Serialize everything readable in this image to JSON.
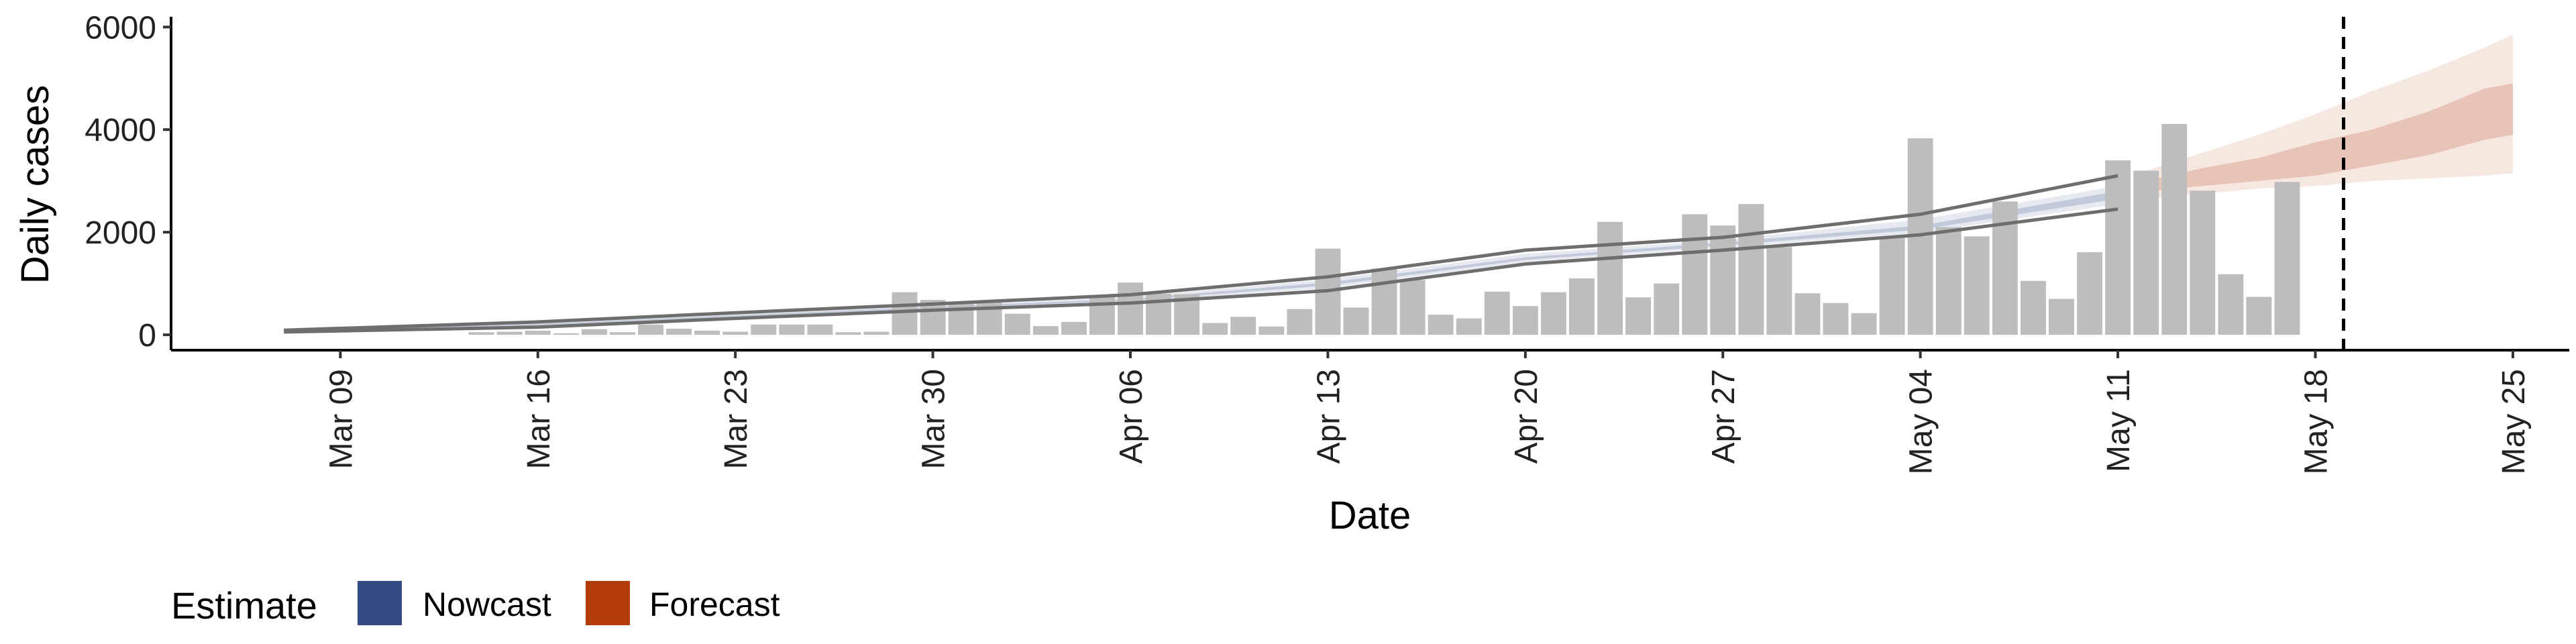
{
  "chart_data": {
    "type": "bar",
    "xlabel": "Date",
    "ylabel": "Daily cases",
    "ylim": [
      -300,
      6200
    ],
    "xlim": [
      "2020-03-03",
      "2020-05-27"
    ],
    "x_ticks": [
      {
        "date": "2020-03-09",
        "label": "Mar 09"
      },
      {
        "date": "2020-03-16",
        "label": "Mar 16"
      },
      {
        "date": "2020-03-23",
        "label": "Mar 23"
      },
      {
        "date": "2020-03-30",
        "label": "Mar 30"
      },
      {
        "date": "2020-04-06",
        "label": "Apr 06"
      },
      {
        "date": "2020-04-13",
        "label": "Apr 13"
      },
      {
        "date": "2020-04-20",
        "label": "Apr 20"
      },
      {
        "date": "2020-04-27",
        "label": "Apr 27"
      },
      {
        "date": "2020-05-04",
        "label": "May 04"
      },
      {
        "date": "2020-05-11",
        "label": "May 11"
      },
      {
        "date": "2020-05-18",
        "label": "May 18"
      },
      {
        "date": "2020-05-25",
        "label": "May 25"
      }
    ],
    "y_ticks": [
      {
        "value": 0,
        "label": "0"
      },
      {
        "value": 2000,
        "label": "2000"
      },
      {
        "value": 4000,
        "label": "4000"
      },
      {
        "value": 6000,
        "label": "6000"
      }
    ],
    "grid": false,
    "bar_color": "#bdbdbd",
    "bars": {
      "start_date": "2020-03-14",
      "values": [
        50,
        60,
        80,
        30,
        110,
        50,
        200,
        120,
        80,
        60,
        200,
        200,
        200,
        50,
        60,
        830,
        680,
        640,
        650,
        410,
        170,
        250,
        750,
        1020,
        800,
        790,
        230,
        350,
        160,
        500,
        1680,
        530,
        1290,
        1070,
        390,
        320,
        840,
        560,
        830,
        1100,
        2200,
        730,
        1000,
        2350,
        2130,
        2550,
        1710,
        810,
        620,
        420,
        1900,
        3830,
        2100,
        1920,
        2600,
        1050,
        700,
        1610,
        3400,
        3200,
        4110,
        2810,
        1180,
        740,
        2980
      ]
    },
    "reference_line": {
      "date": "2020-05-19",
      "style": "dashed",
      "color": "#000000"
    },
    "legend": {
      "title": "Estimate",
      "position": "bottom-left",
      "entries": [
        {
          "label": "Nowcast",
          "color": "#344c86"
        },
        {
          "label": "Forecast",
          "color": "#b33b0a"
        }
      ]
    },
    "series": [
      {
        "estimate": "Nowcast",
        "color": "#344c86",
        "x": [
          "2020-03-07",
          "2020-03-16",
          "2020-03-23",
          "2020-03-30",
          "2020-04-06",
          "2020-04-13",
          "2020-04-20",
          "2020-04-27",
          "2020-05-04",
          "2020-05-11"
        ],
        "upper": [
          90,
          250,
          430,
          600,
          780,
          1130,
          1650,
          1900,
          2350,
          3100
        ],
        "outer_upper": [
          85,
          230,
          400,
          570,
          740,
          1080,
          1580,
          1850,
          2250,
          2900
        ],
        "inner_upper": [
          78,
          210,
          380,
          545,
          700,
          1020,
          1510,
          1800,
          2130,
          2800
        ],
        "inner_lower": [
          70,
          185,
          355,
          515,
          665,
          960,
          1460,
          1740,
          2050,
          2650
        ],
        "outer_lower": [
          62,
          165,
          335,
          495,
          640,
          910,
          1420,
          1700,
          1990,
          2550
        ],
        "lower": [
          55,
          150,
          320,
          480,
          620,
          860,
          1380,
          1650,
          1950,
          2450
        ]
      },
      {
        "estimate": "Forecast",
        "color": "#b33b0a",
        "x": [
          "2020-05-12",
          "2020-05-14",
          "2020-05-16",
          "2020-05-18",
          "2020-05-20",
          "2020-05-22",
          "2020-05-24",
          "2020-05-25"
        ],
        "outer_upper": [
          3200,
          3550,
          3900,
          4300,
          4750,
          5150,
          5600,
          5850
        ],
        "inner_upper": [
          3000,
          3250,
          3450,
          3750,
          4000,
          4350,
          4800,
          4900
        ],
        "inner_lower": [
          2800,
          2900,
          3000,
          3100,
          3300,
          3500,
          3800,
          3900
        ],
        "outer_lower": [
          2650,
          2750,
          2850,
          2900,
          3000,
          3050,
          3100,
          3150
        ]
      }
    ]
  }
}
